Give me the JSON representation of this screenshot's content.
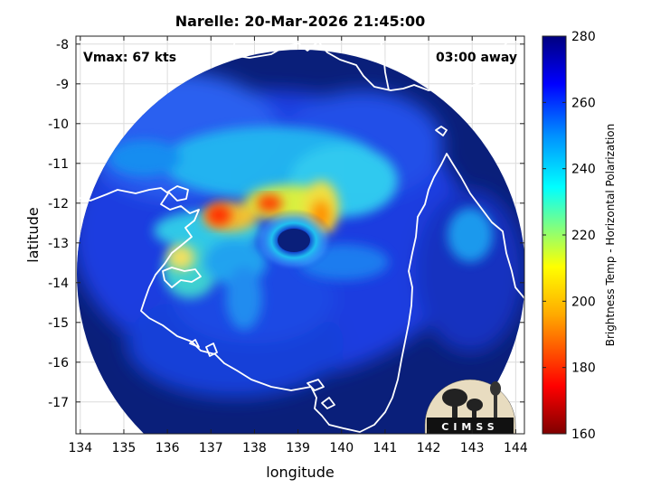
{
  "title": "Narelle: 20-Mar-2026 21:45:00",
  "vmax_label": "Vmax: 67 kts",
  "time_label": "03:00 away",
  "xlabel": "longitude",
  "ylabel": "latitude",
  "xticks": [
    134,
    135,
    136,
    137,
    138,
    139,
    140,
    141,
    142,
    143,
    144
  ],
  "yticks": [
    -8,
    -9,
    -10,
    -11,
    -12,
    -13,
    -14,
    -15,
    -16,
    -17
  ],
  "colorbar": {
    "label": "Brightness Temp - Horizontal Polarization",
    "ticks": [
      160,
      180,
      200,
      220,
      240,
      260,
      280
    ],
    "range": [
      160,
      280
    ]
  },
  "logo_text": "CIMSS",
  "colors": {
    "background_cold": "#0a1f7a",
    "outline": "#ffffff"
  }
}
